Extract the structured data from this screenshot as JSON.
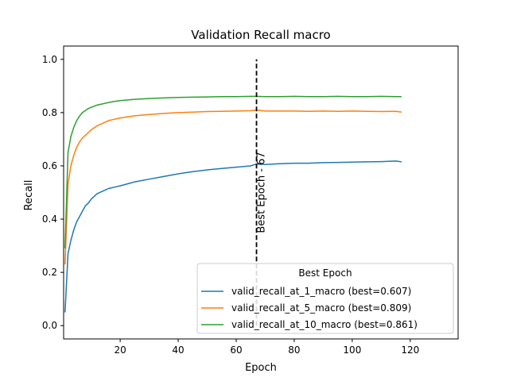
{
  "chart_data": {
    "type": "line",
    "title": "Validation Recall macro",
    "xlabel": "Epoch",
    "ylabel": "Recall",
    "xlim": [
      0.5,
      136.5
    ],
    "ylim": [
      -0.05,
      1.05
    ],
    "xticks": [
      20,
      40,
      60,
      80,
      100,
      120
    ],
    "yticks": [
      0.0,
      0.2,
      0.4,
      0.6,
      0.8,
      1.0
    ],
    "xtick_labels": [
      "20",
      "40",
      "60",
      "80",
      "100",
      "120"
    ],
    "ytick_labels": [
      "0.0",
      "0.2",
      "0.4",
      "0.6",
      "0.8",
      "1.0"
    ],
    "grid": false,
    "legend": {
      "title": "Best Epoch",
      "placement": "lower-right"
    },
    "best_epoch": {
      "x": 67,
      "y_range": [
        0.0,
        1.0
      ],
      "label": "Best Epoch - 67",
      "color": "#000000"
    },
    "series": [
      {
        "name": "valid_recall_at_1_macro (best=0.607)",
        "color": "#1f77b4",
        "x": [
          1,
          2,
          3,
          4,
          5,
          6,
          7,
          8,
          9,
          10,
          12,
          14,
          16,
          18,
          20,
          25,
          30,
          35,
          40,
          45,
          50,
          55,
          60,
          65,
          67,
          70,
          75,
          80,
          85,
          90,
          95,
          100,
          105,
          110,
          115,
          117
        ],
        "values": [
          0.05,
          0.27,
          0.32,
          0.36,
          0.39,
          0.41,
          0.43,
          0.45,
          0.46,
          0.475,
          0.495,
          0.505,
          0.515,
          0.52,
          0.525,
          0.54,
          0.55,
          0.56,
          0.57,
          0.578,
          0.585,
          0.59,
          0.595,
          0.6,
          0.607,
          0.605,
          0.608,
          0.61,
          0.61,
          0.612,
          0.613,
          0.614,
          0.615,
          0.616,
          0.618,
          0.615
        ]
      },
      {
        "name": "valid_recall_at_5_macro (best=0.809)",
        "color": "#ff7f0e",
        "x": [
          1,
          2,
          3,
          4,
          5,
          6,
          7,
          8,
          9,
          10,
          12,
          14,
          16,
          18,
          20,
          25,
          30,
          35,
          40,
          45,
          50,
          55,
          60,
          65,
          67,
          70,
          75,
          80,
          85,
          90,
          95,
          100,
          105,
          110,
          115,
          117
        ],
        "values": [
          0.23,
          0.53,
          0.6,
          0.64,
          0.67,
          0.69,
          0.705,
          0.715,
          0.725,
          0.735,
          0.75,
          0.76,
          0.77,
          0.775,
          0.78,
          0.788,
          0.793,
          0.797,
          0.8,
          0.802,
          0.804,
          0.805,
          0.806,
          0.807,
          0.809,
          0.806,
          0.806,
          0.806,
          0.805,
          0.806,
          0.805,
          0.806,
          0.805,
          0.804,
          0.805,
          0.802
        ]
      },
      {
        "name": "valid_recall_at_10_macro (best=0.861)",
        "color": "#2ca02c",
        "x": [
          1,
          2,
          3,
          4,
          5,
          6,
          7,
          8,
          9,
          10,
          12,
          14,
          16,
          18,
          20,
          25,
          30,
          35,
          40,
          45,
          50,
          55,
          60,
          65,
          67,
          70,
          75,
          80,
          85,
          90,
          95,
          100,
          105,
          110,
          115,
          117
        ],
        "values": [
          0.29,
          0.65,
          0.71,
          0.745,
          0.77,
          0.787,
          0.8,
          0.808,
          0.815,
          0.82,
          0.828,
          0.833,
          0.838,
          0.842,
          0.845,
          0.85,
          0.853,
          0.855,
          0.857,
          0.858,
          0.859,
          0.86,
          0.86,
          0.861,
          0.861,
          0.86,
          0.86,
          0.861,
          0.86,
          0.86,
          0.861,
          0.86,
          0.86,
          0.861,
          0.86,
          0.86
        ]
      }
    ]
  }
}
